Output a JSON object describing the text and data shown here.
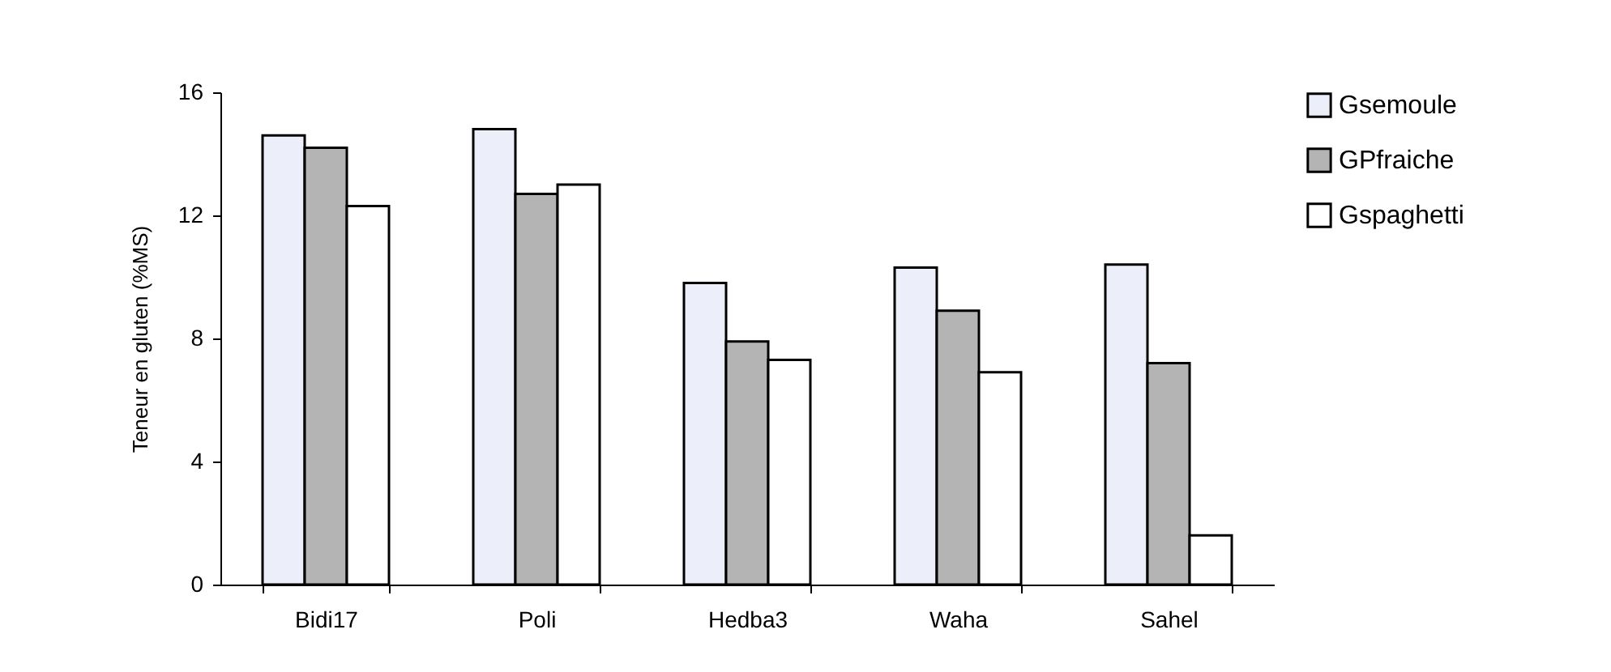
{
  "chart_data": {
    "type": "bar",
    "ylabel": "Teneur en gluten (%MS)",
    "categories": [
      "Bidi17",
      "Poli",
      "Hedba3",
      "Waha",
      "Sahel"
    ],
    "series": [
      {
        "name": "Gsemoule",
        "color": "#eceefa",
        "values": [
          14.6,
          14.8,
          9.8,
          10.3,
          10.4
        ]
      },
      {
        "name": "GPfraiche",
        "color": "#b4b4b4",
        "values": [
          14.2,
          12.7,
          7.9,
          8.9,
          7.2
        ]
      },
      {
        "name": "Gspaghetti",
        "color": "#ffffff",
        "values": [
          12.3,
          13.0,
          7.3,
          6.9,
          1.6
        ]
      }
    ],
    "ylim": [
      0,
      16
    ],
    "yticks": [
      0,
      4,
      8,
      12,
      16
    ],
    "grid": false,
    "legend": "top right"
  }
}
